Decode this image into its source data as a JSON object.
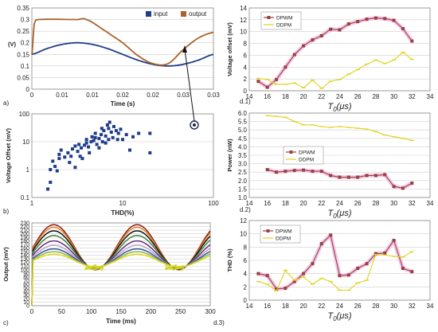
{
  "chart_data": [
    {
      "type": "line",
      "panel_label": "a)",
      "xlabel": "Time (s)",
      "ylabel": "(V)",
      "xlim": [
        0,
        0.03
      ],
      "ylim": [
        0,
        0.35
      ],
      "xticks": [
        "0",
        "0.01",
        "0.01",
        "0.02",
        "0.02",
        "0.03",
        "0.03"
      ],
      "yticks": [
        "0",
        "0.05",
        "0.1",
        "0.15",
        "0.2",
        "0.25",
        "0.3",
        "0.35"
      ],
      "legend": "top-right",
      "series": [
        {
          "name": "input",
          "color": "#1f3d8a",
          "x": [
            0,
            0.0025,
            0.005,
            0.0075,
            0.01,
            0.0125,
            0.015,
            0.0175,
            0.02,
            0.0225,
            0.025,
            0.0275,
            0.03
          ],
          "y": [
            0.15,
            0.175,
            0.193,
            0.2,
            0.193,
            0.175,
            0.15,
            0.125,
            0.107,
            0.1,
            0.107,
            0.125,
            0.15
          ]
        },
        {
          "name": "output",
          "color": "#a9632c",
          "x": [
            0,
            0.0004,
            0.001,
            0.0075,
            0.009,
            0.0125,
            0.015,
            0.0175,
            0.02,
            0.0225,
            0.025,
            0.0275,
            0.03
          ],
          "y": [
            0.15,
            0.28,
            0.3,
            0.3,
            0.3,
            0.245,
            0.2,
            0.145,
            0.11,
            0.11,
            0.17,
            0.22,
            0.245
          ]
        }
      ]
    },
    {
      "type": "scatter",
      "panel_label": "b)",
      "xlabel": "THD(%)",
      "ylabel": "Voltage Offset (mV)",
      "xscale": "log",
      "yscale": "log",
      "xlim": [
        1,
        100
      ],
      "ylim": [
        0.1,
        100
      ],
      "xticks": [
        "1",
        "10",
        "100"
      ],
      "yticks": [
        "0.1",
        "1",
        "10",
        "100"
      ],
      "series": [
        {
          "name": "",
          "color": "#1f3d8a",
          "points": [
            [
              1.5,
              0.2
            ],
            [
              1.6,
              0.35
            ],
            [
              1.6,
              1.0
            ],
            [
              1.8,
              1.3
            ],
            [
              1.7,
              2.0
            ],
            [
              1.9,
              0.9
            ],
            [
              2.0,
              2.5
            ],
            [
              2.0,
              3.5
            ],
            [
              2.3,
              2.8
            ],
            [
              2.1,
              5.0
            ],
            [
              2.5,
              4.0
            ],
            [
              2.7,
              3.0
            ],
            [
              3.0,
              1.2
            ],
            [
              2.8,
              5.5
            ],
            [
              3.2,
              4.5
            ],
            [
              3.0,
              7.0
            ],
            [
              3.5,
              6.0
            ],
            [
              3.3,
              8.0
            ],
            [
              3.8,
              7.5
            ],
            [
              4.0,
              9.0
            ],
            [
              3.6,
              2.5
            ],
            [
              4.2,
              6.5
            ],
            [
              4.5,
              10.0
            ],
            [
              4.0,
              12.0
            ],
            [
              4.8,
              11.0
            ],
            [
              5.0,
              14.0
            ],
            [
              5.2,
              8.0
            ],
            [
              4.6,
              15.0
            ],
            [
              5.5,
              13.0
            ],
            [
              5.8,
              18.0
            ],
            [
              6.0,
              10.0
            ],
            [
              5.0,
              20.0
            ],
            [
              6.2,
              25.0
            ],
            [
              6.5,
              16.0
            ],
            [
              7.0,
              30.0
            ],
            [
              7.5,
              22.0
            ],
            [
              6.8,
              40.0
            ],
            [
              7.2,
              50.0
            ],
            [
              8.0,
              35.0
            ],
            [
              8.5,
              25.0
            ],
            [
              9.0,
              20.0
            ],
            [
              10.0,
              12.0
            ],
            [
              11.0,
              18.0
            ],
            [
              12.0,
              5.0
            ],
            [
              7.8,
              14.0
            ],
            [
              13.0,
              15.0
            ],
            [
              15.0,
              20.0
            ],
            [
              20.0,
              4.0
            ],
            [
              20.0,
              20.0
            ],
            [
              5.5,
              6.0
            ],
            [
              6.5,
              9.0
            ],
            [
              4.3,
              4.0
            ],
            [
              3.4,
              3.0
            ],
            [
              2.6,
              1.8
            ],
            [
              8.8,
              12.0
            ],
            [
              9.5,
              28.0
            ],
            [
              5.9,
              30.0
            ],
            [
              7.0,
              12.0
            ]
          ]
        }
      ],
      "annotation": "Dark ring marker with arrow pointing to panel a)"
    },
    {
      "type": "line",
      "panel_label": "c)",
      "xlabel": "Time (ms)",
      "ylabel": "Output (mV)",
      "xlim": [
        0,
        300
      ],
      "ylim": [
        0,
        230
      ],
      "xticks": [
        "0",
        "50",
        "100",
        "150",
        "200",
        "250",
        "300"
      ],
      "yticks": [
        "0",
        "10",
        "20",
        "30",
        "40",
        "50",
        "60",
        "70",
        "80",
        "90",
        "100",
        "110",
        "120",
        "130",
        "140",
        "150",
        "160",
        "170",
        "180",
        "190",
        "200",
        "210",
        "220",
        "230"
      ],
      "period_ms": 140,
      "series": [
        {
          "name": "",
          "color": "#8b1a1a",
          "max": 225,
          "min": 100
        },
        {
          "name": "",
          "color": "#e08020",
          "max": 218,
          "min": 101
        },
        {
          "name": "",
          "color": "#111111",
          "max": 208,
          "min": 102
        },
        {
          "name": "",
          "color": "#3f7f3f",
          "max": 195,
          "min": 103
        },
        {
          "name": "",
          "color": "#6a2d7a",
          "max": 180,
          "min": 104
        },
        {
          "name": "",
          "color": "#bfa3c9",
          "max": 168,
          "min": 105
        },
        {
          "name": "",
          "color": "#2d5aa8",
          "max": 158,
          "min": 106
        },
        {
          "name": "",
          "color": "#9ab23b",
          "max": 150,
          "min": 107
        },
        {
          "name": "",
          "color": "#d9d91f",
          "max": 143,
          "min": 108
        }
      ]
    },
    {
      "type": "line",
      "panel_label": "d.1)",
      "xlabel": "T0(μs)",
      "ylabel": "Voltage offset (mV)",
      "xlim": [
        14,
        34
      ],
      "ylim": [
        0,
        14
      ],
      "xticks": [
        "14",
        "16",
        "18",
        "20",
        "22",
        "24",
        "26",
        "28",
        "30",
        "32",
        "34"
      ],
      "yticks": [
        "0",
        "2",
        "4",
        "6",
        "8",
        "10",
        "12",
        "14"
      ],
      "legend": "top-left",
      "series": [
        {
          "name": "DPWM",
          "color": "#9b4040",
          "x": [
            15,
            16,
            17,
            18,
            19,
            20,
            21,
            22,
            23,
            24,
            25,
            26,
            27,
            28,
            29,
            30,
            31,
            32
          ],
          "y": [
            1.6,
            0.6,
            1.9,
            4.0,
            6.1,
            7.6,
            8.6,
            9.3,
            10.4,
            10.3,
            11.3,
            11.7,
            12.1,
            12.3,
            12.2,
            11.9,
            10.5,
            8.4
          ]
        },
        {
          "name": "DDPM",
          "color": "#e0d21a",
          "x": [
            15,
            16,
            17,
            18,
            19,
            20,
            21,
            22,
            23,
            24,
            25,
            26,
            27,
            28,
            29,
            30,
            31,
            32
          ],
          "y": [
            2.1,
            1.9,
            1.1,
            1.1,
            1.3,
            0.5,
            1.8,
            0.4,
            1.6,
            1.9,
            2.8,
            3.6,
            4.5,
            5.2,
            4.6,
            5.2,
            6.5,
            5.3
          ]
        }
      ]
    },
    {
      "type": "line",
      "panel_label": "d.2)",
      "xlabel": "T0(μs)",
      "ylabel": "Power (nW)",
      "xlim": [
        14,
        34
      ],
      "ylim": [
        1,
        6
      ],
      "xticks": [
        "14",
        "16",
        "18",
        "20",
        "22",
        "24",
        "26",
        "28",
        "30",
        "32",
        "34"
      ],
      "yticks": [
        "1.0",
        "1.5",
        "2.0",
        "2.5",
        "3.0",
        "3.5",
        "4.0",
        "4.5",
        "5.0",
        "5.5",
        "6.0"
      ],
      "legend": "center",
      "series": [
        {
          "name": "DPWM",
          "color": "#9b4040",
          "x": [
            16,
            17,
            18,
            19,
            20,
            21,
            22,
            23,
            24,
            25,
            26,
            27,
            28,
            29,
            30,
            31,
            32
          ],
          "y": [
            2.65,
            2.5,
            2.55,
            2.6,
            2.62,
            2.55,
            2.55,
            2.3,
            2.2,
            2.2,
            2.2,
            2.3,
            2.3,
            2.35,
            1.65,
            1.55,
            1.85
          ]
        },
        {
          "name": "DDPM",
          "color": "#e0d21a",
          "x": [
            16,
            17,
            18,
            19,
            20,
            21,
            22,
            23,
            24,
            25,
            26,
            27,
            28,
            29,
            30,
            31,
            32
          ],
          "y": [
            5.85,
            5.8,
            5.75,
            5.5,
            5.3,
            5.3,
            5.2,
            5.15,
            5.2,
            5.15,
            5.1,
            5.05,
            4.9,
            4.7,
            4.6,
            4.5,
            4.38
          ]
        }
      ]
    },
    {
      "type": "line",
      "panel_label": "d.3)",
      "xlabel": "T0(μs)",
      "ylabel": "THD (%)",
      "xlim": [
        14,
        34
      ],
      "ylim": [
        0,
        12
      ],
      "xticks": [
        "14",
        "16",
        "18",
        "20",
        "22",
        "24",
        "26",
        "28",
        "30",
        "32",
        "34"
      ],
      "yticks": [
        "0",
        "2",
        "4",
        "6",
        "8",
        "10",
        "12"
      ],
      "legend": "top-left",
      "series": [
        {
          "name": "DPWM",
          "color": "#9b4040",
          "x": [
            15,
            16,
            17,
            18,
            19,
            20,
            21,
            22,
            23,
            24,
            25,
            26,
            27,
            28,
            29,
            30,
            31,
            32
          ],
          "y": [
            4.0,
            3.7,
            1.7,
            1.8,
            2.8,
            4.0,
            5.5,
            8.5,
            9.8,
            3.7,
            3.8,
            4.8,
            5.5,
            7.0,
            7.1,
            9.0,
            4.8,
            4.3
          ]
        },
        {
          "name": "DDPM",
          "color": "#e0d21a",
          "x": [
            15,
            16,
            17,
            18,
            19,
            20,
            21,
            22,
            23,
            24,
            25,
            26,
            27,
            28,
            29,
            30,
            31,
            32
          ],
          "y": [
            2.8,
            2.4,
            1.4,
            4.5,
            3.0,
            3.5,
            2.4,
            3.3,
            2.8,
            1.5,
            1.5,
            2.6,
            3.0,
            6.9,
            6.8,
            6.6,
            6.5,
            7.3
          ]
        }
      ]
    }
  ]
}
